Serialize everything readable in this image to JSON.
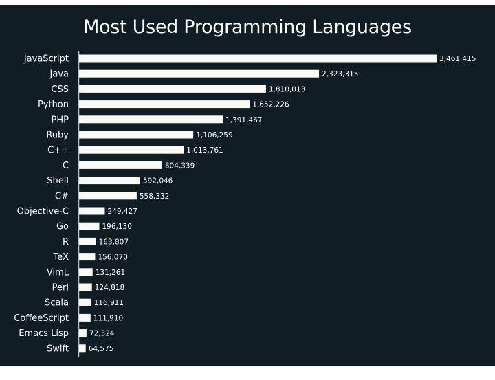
{
  "chart_data": {
    "type": "bar",
    "orientation": "horizontal",
    "title": "Most Used Programming Languages",
    "xlabel": "",
    "ylabel": "",
    "grid": false,
    "legend": "none",
    "xlim": [
      0,
      3461415
    ],
    "categories": [
      "JavaScript",
      "Java",
      "CSS",
      "Python",
      "PHP",
      "Ruby",
      "C++",
      "C",
      "Shell",
      "C#",
      "Objective-C",
      "Go",
      "R",
      "TeX",
      "VimL",
      "Perl",
      "Scala",
      "CoffeeScript",
      "Emacs Lisp",
      "Swift"
    ],
    "values": [
      3461415,
      2323315,
      1810013,
      1652226,
      1391467,
      1106259,
      1013761,
      804339,
      592046,
      558332,
      249427,
      196130,
      163807,
      156070,
      131261,
      124818,
      116911,
      111910,
      72324,
      64575
    ],
    "value_labels": [
      "3,461,415",
      "2,323,315",
      "1,810,013",
      "1,652,226",
      "1,391,467",
      "1,106,259",
      "1,013,761",
      "804,339",
      "592,046",
      "558,332",
      "249,427",
      "196,130",
      "163,807",
      "156,070",
      "131,261",
      "124,818",
      "116,911",
      "111,910",
      "72,324",
      "64,575"
    ],
    "colors": {
      "background": "#111d24",
      "bar": "#fafaf5",
      "text": "#ffffff",
      "axis": "#b8bcbf"
    }
  }
}
